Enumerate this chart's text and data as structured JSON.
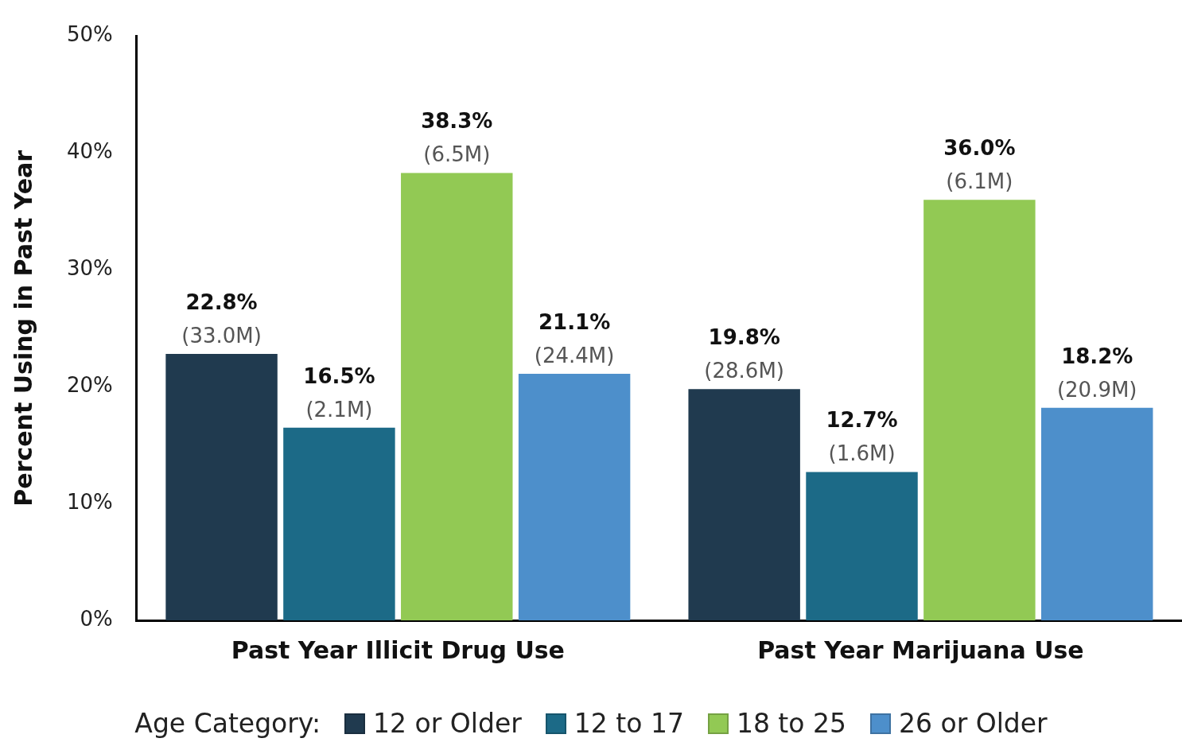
{
  "chart_data": {
    "type": "bar",
    "categories": [
      "Past Year Illicit Drug Use",
      "Past Year Marijuana Use"
    ],
    "ylabel": "Percent Using in Past Year",
    "legend_title": "Age Category:",
    "series": [
      {
        "name": "12 or Older",
        "color": "#203a4f",
        "values": [
          22.8,
          19.8
        ],
        "value_labels": [
          "22.8%\n(33.0M)",
          "19.8%\n(28.6M)"
        ]
      },
      {
        "name": "12 to 17",
        "color": "#1c6a87",
        "values": [
          16.5,
          12.7
        ],
        "value_labels": [
          "16.5%\n(2.1M)",
          "12.7%\n(1.6M)"
        ]
      },
      {
        "name": "18 to 25",
        "color": "#92c954",
        "values": [
          38.3,
          36.0
        ],
        "value_labels": [
          "38.3%\n(6.5M)",
          "36.0%\n(6.1M)"
        ]
      },
      {
        "name": "26 or Older",
        "color": "#4d8fcb",
        "values": [
          21.1,
          18.2
        ],
        "value_labels": [
          "21.1%\n(24.4M)",
          "18.2%\n(20.9M)"
        ]
      }
    ],
    "ylim": [
      0,
      50
    ],
    "yticks": [
      {
        "value": 0,
        "label": "0%"
      },
      {
        "value": 10,
        "label": "10%"
      },
      {
        "value": 20,
        "label": "20%"
      },
      {
        "value": 30,
        "label": "30%"
      },
      {
        "value": 40,
        "label": "40%"
      },
      {
        "value": 50,
        "label": "50%"
      }
    ],
    "grid": false,
    "legend": "bottom"
  }
}
